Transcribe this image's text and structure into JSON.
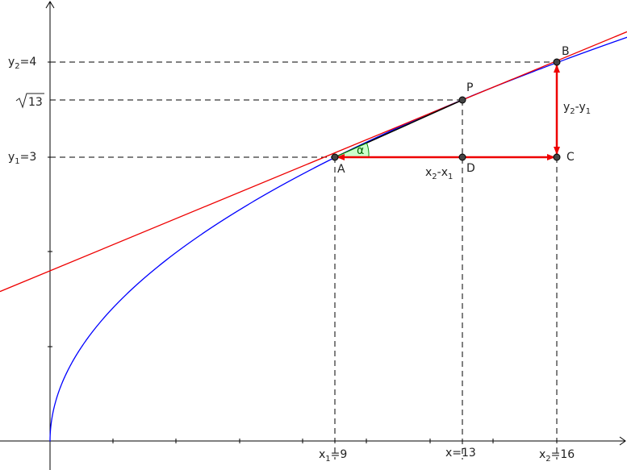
{
  "axis_labels": {
    "y2": {
      "main": "y",
      "sub": "2",
      "tail": "=4"
    },
    "sqrt": {
      "radicand": "13"
    },
    "y1": {
      "main": "y",
      "sub": "1",
      "tail": "=3"
    },
    "x1": {
      "main": "x",
      "sub": "1",
      "tail": "=9"
    },
    "x": "x=13",
    "x2": {
      "main": "x",
      "sub": "2",
      "tail": "=16"
    }
  },
  "points": {
    "A": "A",
    "B": "B",
    "C": "C",
    "D": "D",
    "P": "P"
  },
  "annotations": {
    "dx": {
      "main": "x",
      "sub": "2",
      "mid": "-x",
      "sub2": "1"
    },
    "dy": {
      "main": "y",
      "sub": "2",
      "mid": "-y",
      "sub2": "1"
    },
    "alpha": "α"
  }
}
